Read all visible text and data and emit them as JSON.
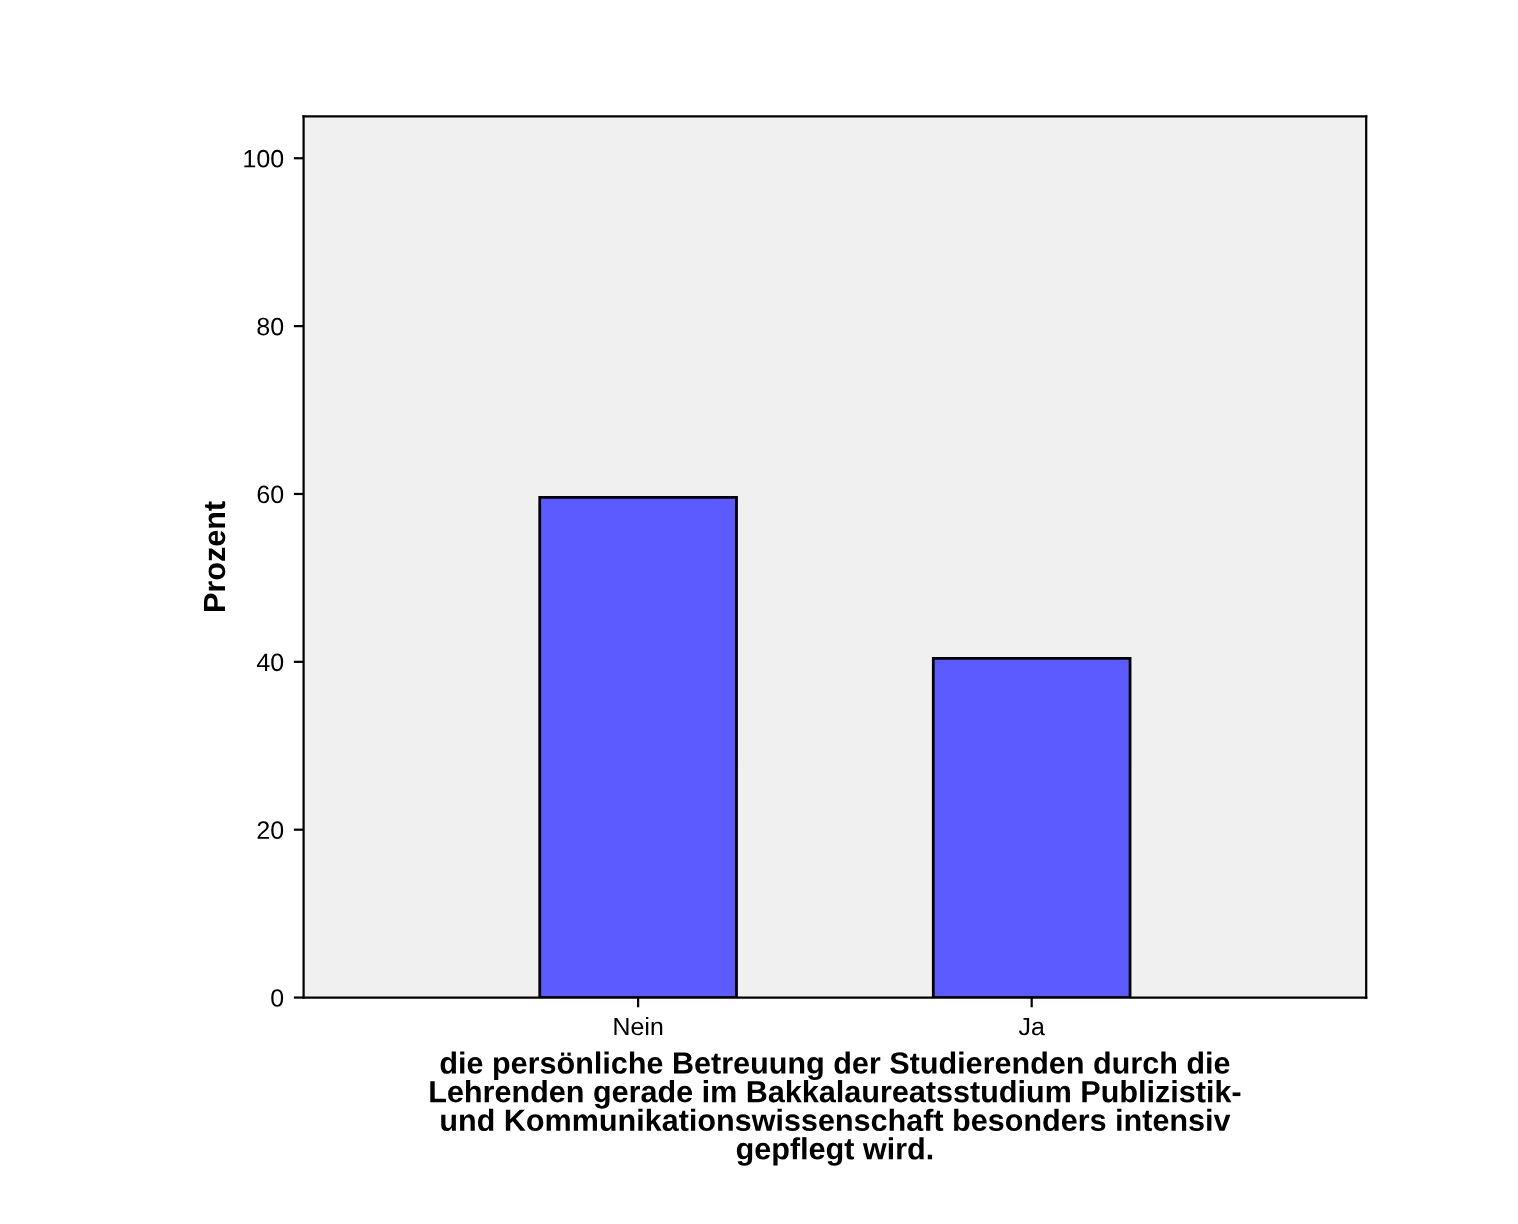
{
  "chart_data": {
    "type": "bar",
    "categories": [
      "Nein",
      "Ja"
    ],
    "values": [
      59.6,
      40.4
    ],
    "color": "#5b5bff",
    "ylabel": "Prozent",
    "xlabel": "die persönliche Betreuung der Studierenden durch die\nLehrenden gerade im Bakkalaureatsstudium Publizistik-\nund Kommunikationswissenschaft besonders intensiv\ngepflegt wird.",
    "ylim": [
      0,
      105
    ],
    "yticks": [
      0,
      20,
      40,
      60,
      80,
      100
    ],
    "grid": false
  }
}
